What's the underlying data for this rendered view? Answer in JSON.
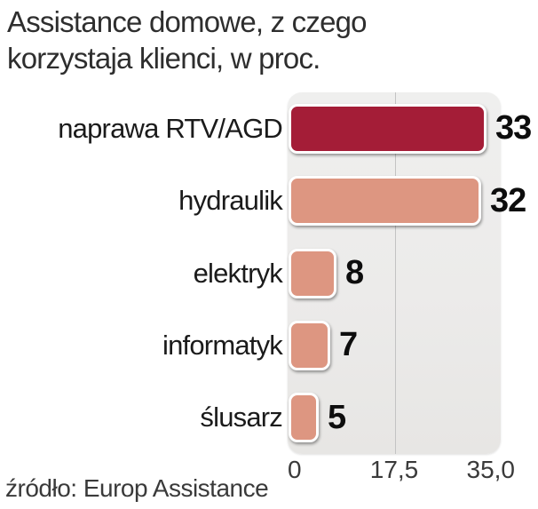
{
  "title": {
    "line1": "Assistance domowe, z czego",
    "line2": "korzystaja klienci, w proc."
  },
  "chart_data": {
    "type": "bar",
    "orientation": "horizontal",
    "unit": "percent",
    "categories": [
      "naprawa RTV/AGD",
      "hydraulik",
      "elektryk",
      "informatyk",
      "ślusarz"
    ],
    "values": [
      33,
      32,
      8,
      7,
      5
    ],
    "items": [
      {
        "label": "naprawa RTV/AGD",
        "value": 33,
        "color": "#a41d37"
      },
      {
        "label": "hydraulik",
        "value": 32,
        "color": "#dd9681"
      },
      {
        "label": "elektryk",
        "value": 8,
        "color": "#dd9681"
      },
      {
        "label": "informatyk",
        "value": 7,
        "color": "#dd9681"
      },
      {
        "label": "ślusarz",
        "value": 5,
        "color": "#dd9681"
      }
    ],
    "xlim": [
      0,
      35
    ],
    "xticks": [
      "0",
      "17,5",
      "35,0"
    ],
    "gridlines_x": [
      17.5
    ],
    "grid": "single vertical gridline at 17.5",
    "legend": false
  },
  "colors": {
    "bar_highlight": "#a41d37",
    "bar_default": "#dd9681",
    "plot_background": "#ecebea",
    "gridline": "#c3c3c3",
    "title_text": "#2e2e2e",
    "value_text": "#0d0d0d"
  },
  "source": "źródło: Europ Assistance"
}
